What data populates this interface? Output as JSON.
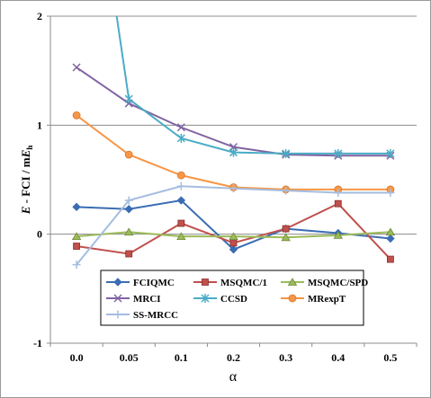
{
  "chart_data": {
    "type": "line",
    "xlabel": "α",
    "ylabel": "E - FCI / mEh",
    "ylabel_parts": {
      "prefix": "E",
      "middle": " - FCI / m",
      "e": "E",
      "sub": "h"
    },
    "categories": [
      "0.0",
      "0.05",
      "0.1",
      "0.2",
      "0.3",
      "0.4",
      "0.5"
    ],
    "ylim": [
      -1,
      2
    ],
    "yticks": [
      "-1",
      "0",
      "1",
      "2"
    ],
    "grid": true,
    "legend_position": "bottom-center",
    "series": [
      {
        "name": "FCIQMC",
        "color": "#3a6db3",
        "marker": "diamond",
        "values": [
          0.25,
          0.23,
          0.31,
          -0.14,
          0.05,
          0.01,
          -0.04
        ]
      },
      {
        "name": "MSQMC/1",
        "color": "#c0504d",
        "marker": "square",
        "values": [
          -0.11,
          -0.18,
          0.1,
          -0.08,
          0.05,
          0.28,
          -0.23
        ]
      },
      {
        "name": "MSQMC/SPD",
        "color": "#9bbb59",
        "marker": "triangle",
        "values": [
          -0.02,
          0.02,
          -0.02,
          -0.02,
          -0.03,
          -0.01,
          0.02
        ]
      },
      {
        "name": "MRCI",
        "color": "#8064a2",
        "marker": "x",
        "values": [
          1.53,
          1.2,
          0.98,
          0.8,
          0.73,
          0.72,
          0.72
        ]
      },
      {
        "name": "CCSD",
        "color": "#4bacc6",
        "marker": "star",
        "values": [
          4.5,
          1.24,
          0.88,
          0.75,
          0.74,
          0.74,
          0.74
        ]
      },
      {
        "name": "MRexpT",
        "color": "#f79646",
        "marker": "circle",
        "values": [
          1.09,
          0.73,
          0.54,
          0.43,
          0.41,
          0.41,
          0.41
        ]
      },
      {
        "name": "SS-MRCC",
        "color": "#a5bde0",
        "marker": "plus",
        "values": [
          -0.28,
          0.31,
          0.44,
          0.42,
          0.4,
          0.38,
          0.38
        ]
      }
    ]
  }
}
